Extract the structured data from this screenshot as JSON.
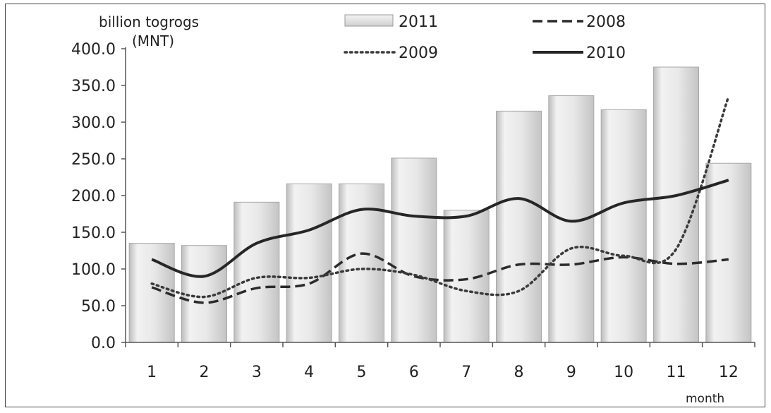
{
  "chart_data": {
    "type": "bar",
    "ylabel": "billion togrogs",
    "ylabel_unit": "(MNT)",
    "xlabel": "month",
    "ylim": [
      0,
      400
    ],
    "yticks": [
      "0.0",
      "50.0",
      "100.0",
      "150.0",
      "200.0",
      "250.0",
      "300.0",
      "350.0",
      "400.0"
    ],
    "categories": [
      "1",
      "2",
      "3",
      "4",
      "5",
      "6",
      "7",
      "8",
      "9",
      "10",
      "11",
      "12"
    ],
    "legend_placement": "top",
    "bar_series": {
      "name": "2011",
      "color": "#e6e6e6",
      "values": [
        135,
        132,
        191,
        216,
        216,
        251,
        180,
        315,
        336,
        317,
        375,
        244
      ]
    },
    "line_series": [
      {
        "name": "2008",
        "style": "dashed",
        "color": "#2b2b2b",
        "values": [
          75,
          54,
          74,
          80,
          121,
          90,
          86,
          106,
          106,
          116,
          107,
          113
        ]
      },
      {
        "name": "2009",
        "style": "dotted",
        "color": "#3a3a3a",
        "values": [
          80,
          62,
          88,
          88,
          100,
          92,
          70,
          70,
          128,
          118,
          127,
          335
        ]
      },
      {
        "name": "2010",
        "style": "solid",
        "color": "#262626",
        "values": [
          113,
          90,
          135,
          153,
          181,
          172,
          172,
          196,
          165,
          190,
          200,
          221
        ]
      }
    ]
  }
}
